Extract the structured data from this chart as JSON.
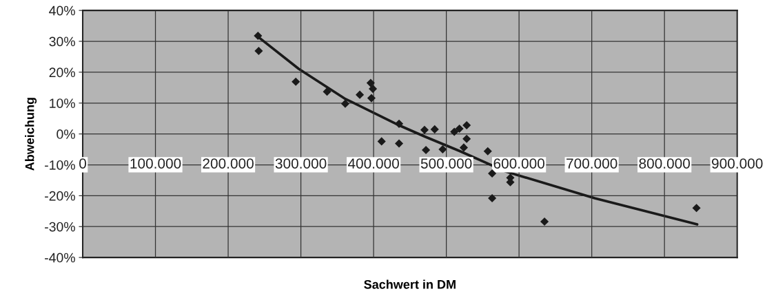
{
  "chart_data": {
    "type": "scatter",
    "xlabel": "Sachwert in DM",
    "ylabel": "Abweichung",
    "xlim": [
      0,
      900000
    ],
    "ylim": [
      -40,
      40
    ],
    "xticks": [
      {
        "value": 0,
        "label": "0"
      },
      {
        "value": 100000,
        "label": "100.000"
      },
      {
        "value": 200000,
        "label": "200.000"
      },
      {
        "value": 300000,
        "label": "300.000"
      },
      {
        "value": 400000,
        "label": "400.000"
      },
      {
        "value": 500000,
        "label": "500.000"
      },
      {
        "value": 600000,
        "label": "600.000"
      },
      {
        "value": 700000,
        "label": "700.000"
      },
      {
        "value": 800000,
        "label": "800.000"
      },
      {
        "value": 900000,
        "label": "900.000"
      }
    ],
    "yticks": [
      {
        "value": -40,
        "label": "-40%"
      },
      {
        "value": -30,
        "label": "-30%"
      },
      {
        "value": -20,
        "label": "-20%"
      },
      {
        "value": -10,
        "label": "-10%"
      },
      {
        "value": 0,
        "label": "0%"
      },
      {
        "value": 10,
        "label": "10%"
      },
      {
        "value": 20,
        "label": "20%"
      },
      {
        "value": 30,
        "label": "30%"
      },
      {
        "value": 40,
        "label": "40%"
      }
    ],
    "grid": true,
    "legend": false,
    "series": [
      {
        "type": "scatter",
        "color": "#1a1a1a",
        "marker": "diamond",
        "x": [
          241000,
          242000,
          293000,
          336000,
          361000,
          381000,
          396000,
          399000,
          397000,
          435000,
          411000,
          435000,
          470000,
          484000,
          472000,
          495000,
          511000,
          518000,
          528000,
          528000,
          524000,
          557000,
          563000,
          588000,
          588000,
          563000,
          635000,
          844000
        ],
        "values": [
          31.8,
          26.9,
          16.9,
          13.7,
          9.8,
          12.7,
          16.5,
          14.6,
          11.6,
          3.3,
          -2.4,
          -3.1,
          1.3,
          1.5,
          -5.2,
          -5.0,
          0.7,
          1.7,
          2.8,
          -1.6,
          -4.4,
          -5.6,
          -12.8,
          -14.2,
          -15.6,
          -20.8,
          -28.4,
          -24.0
        ]
      },
      {
        "type": "line",
        "color": "#1a1a1a",
        "marker": "none",
        "line_style": "solid",
        "x": [
          241000,
          297000,
          360000,
          436000,
          470000,
          519000,
          582000,
          704000,
          845000
        ],
        "values": [
          31.5,
          21.1,
          11.5,
          2.7,
          -0.8,
          -5.6,
          -12.2,
          -20.8,
          -29.3
        ]
      }
    ]
  }
}
